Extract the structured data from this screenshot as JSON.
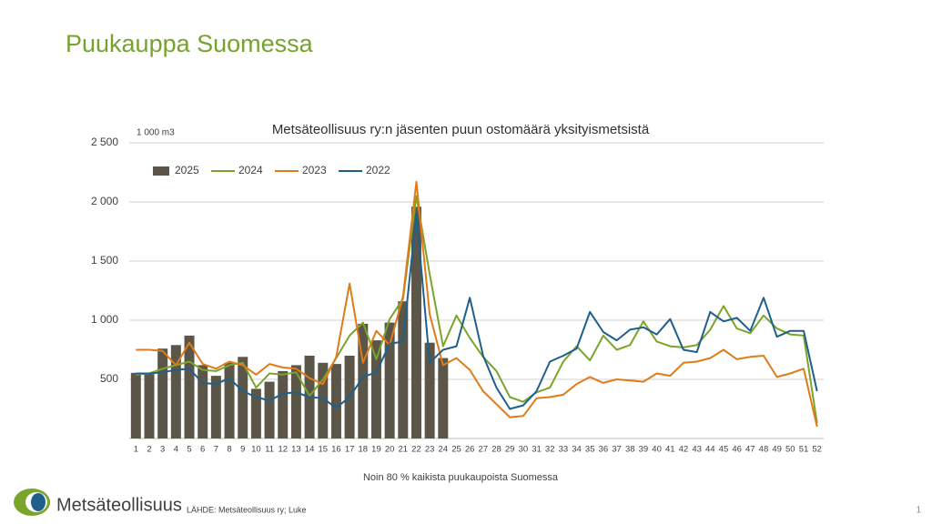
{
  "slide": {
    "title": "Puukauppa Suomessa",
    "logo": "Metsäteollisuus",
    "source": "LÄHDE: Metsäteollisuus ry; Luke",
    "page_number": "1"
  },
  "chart_data": {
    "type": "bar_line",
    "title": "Metsäteollisuus ry:n jäsenten puun ostomäärä yksityismetsistä",
    "y_unit": "1 000 m3",
    "x_label": "Noin 80 % kaikista puukaupoista Suomessa",
    "categories": [
      "1",
      "2",
      "3",
      "4",
      "5",
      "6",
      "7",
      "8",
      "9",
      "10",
      "11",
      "12",
      "13",
      "14",
      "15",
      "16",
      "17",
      "18",
      "19",
      "20",
      "21",
      "22",
      "23",
      "24",
      "25",
      "26",
      "27",
      "28",
      "29",
      "30",
      "31",
      "32",
      "33",
      "34",
      "35",
      "36",
      "37",
      "38",
      "39",
      "40",
      "41",
      "42",
      "43",
      "44",
      "45",
      "46",
      "47",
      "48",
      "49",
      "50",
      "51",
      "52"
    ],
    "ylim": [
      0,
      2500
    ],
    "yticks": [
      500,
      {
        "value": 1000,
        "label": "1 000"
      },
      {
        "value": 1500,
        "label": "1 500"
      },
      {
        "value": 2000,
        "label": "2 000"
      },
      {
        "value": 2500,
        "label": "2 500"
      }
    ],
    "grid": true,
    "legend": "upper left",
    "series": [
      {
        "name": "2025",
        "type": "bar",
        "color": "#5b5647",
        "values": [
          555,
          545,
          760,
          790,
          870,
          620,
          530,
          640,
          690,
          420,
          480,
          570,
          620,
          700,
          640,
          630,
          700,
          970,
          830,
          980,
          1160,
          1960,
          810,
          680,
          null,
          null,
          null,
          null,
          null,
          null,
          null,
          null,
          null,
          null,
          null,
          null,
          null,
          null,
          null,
          null,
          null,
          null,
          null,
          null,
          null,
          null,
          null,
          null,
          null,
          null,
          null,
          null
        ]
      },
      {
        "name": "2024",
        "type": "line",
        "color": "#7aa52a",
        "values": [
          540,
          550,
          590,
          620,
          650,
          580,
          570,
          620,
          640,
          430,
          550,
          540,
          560,
          360,
          500,
          680,
          870,
          980,
          670,
          1010,
          1180,
          2050,
          1390,
          780,
          1040,
          850,
          690,
          570,
          350,
          310,
          390,
          430,
          650,
          780,
          660,
          870,
          750,
          790,
          990,
          820,
          780,
          770,
          790,
          920,
          1120,
          930,
          890,
          1040,
          930,
          880,
          870,
          130
        ]
      },
      {
        "name": "2023",
        "type": "line",
        "color": "#e07b1a",
        "values": [
          750,
          750,
          740,
          620,
          810,
          630,
          590,
          650,
          620,
          540,
          630,
          600,
          590,
          510,
          460,
          690,
          1310,
          640,
          910,
          790,
          1200,
          2170,
          1050,
          620,
          680,
          580,
          400,
          290,
          180,
          190,
          340,
          350,
          370,
          460,
          520,
          470,
          500,
          490,
          480,
          550,
          530,
          640,
          650,
          680,
          750,
          670,
          690,
          700,
          520,
          550,
          590,
          100
        ]
      },
      {
        "name": "2022",
        "type": "line",
        "color": "#1f5f8b",
        "values": [
          550,
          550,
          560,
          580,
          590,
          470,
          460,
          510,
          400,
          350,
          320,
          380,
          390,
          350,
          340,
          260,
          350,
          520,
          560,
          800,
          820,
          1900,
          640,
          750,
          780,
          1190,
          700,
          430,
          250,
          280,
          400,
          650,
          700,
          760,
          1070,
          900,
          830,
          920,
          940,
          880,
          1010,
          750,
          730,
          1070,
          990,
          1020,
          910,
          1190,
          860,
          910,
          910,
          400
        ]
      }
    ]
  }
}
